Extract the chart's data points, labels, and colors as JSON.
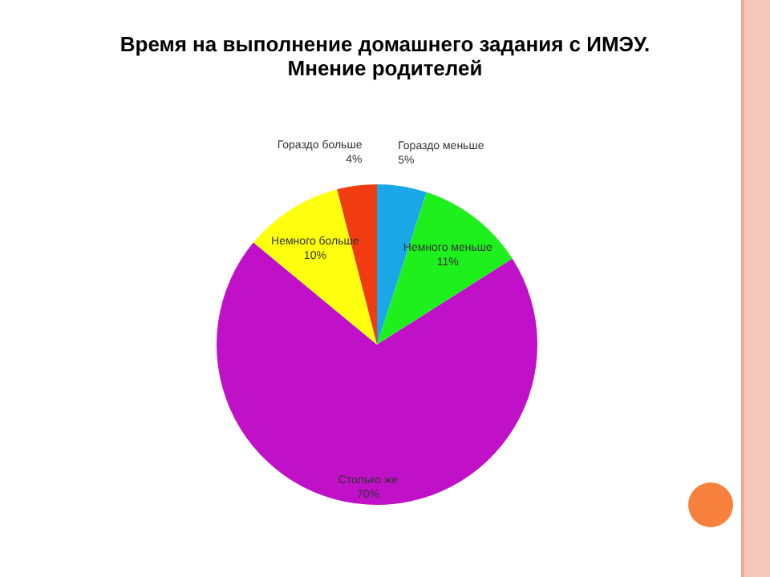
{
  "chart_data": {
    "type": "pie",
    "title": "Время на выполнение домашнего задания с ИМЭУ. Мнение родителей",
    "categories": [
      "Гораздо меньше",
      "Немного меньше",
      "Столько же",
      "Немного больше",
      "Гораздо больше"
    ],
    "values": [
      5,
      11,
      70,
      10,
      4
    ],
    "value_labels": [
      "5%",
      "11%",
      "70%",
      "10%",
      "4%"
    ],
    "colors": [
      "#1aa7e8",
      "#1ef01e",
      "#c010c8",
      "#ffff10",
      "#f03c10"
    ],
    "legend": false
  }
}
